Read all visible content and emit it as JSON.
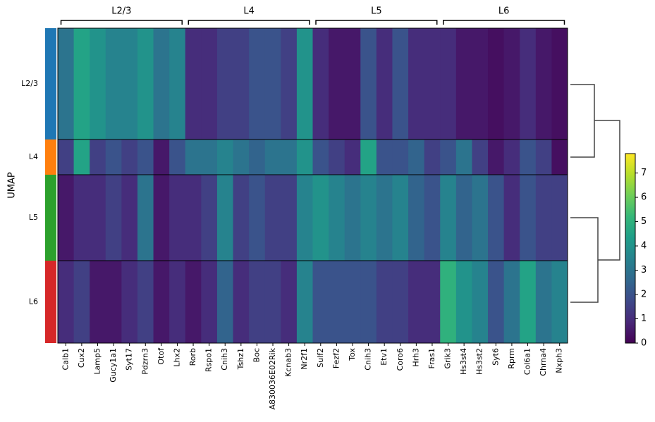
{
  "chart_data": {
    "type": "heatmap",
    "y_label": "UMAP",
    "colormap": "viridis",
    "gene_groups": [
      {
        "name": "L2/3",
        "genes": [
          "Calb1",
          "Cux2",
          "Lamp5",
          "Gucy1a1",
          "Syt17",
          "Pdzrn3",
          "Otof",
          "Lhx2"
        ]
      },
      {
        "name": "L4",
        "genes": [
          "Rorb",
          "Rspo1",
          "Cnih3",
          "Tshz1",
          "Boc",
          "A830036E02Rik",
          "Kcnab3",
          "Nr2f1"
        ]
      },
      {
        "name": "L5",
        "genes": [
          "Sulf2",
          "Fezf2",
          "Tox",
          "Cnih3",
          "Etv1",
          "Coro6",
          "Hrh3",
          "Fras1"
        ]
      },
      {
        "name": "L6",
        "genes": [
          "Grik3",
          "Hs3st4",
          "Hs3st2",
          "Syt6",
          "Rprm",
          "Col6a1",
          "Chrna4",
          "Nxph3"
        ]
      }
    ],
    "series": [
      {
        "name": "L2/3",
        "color": "#1f77b4",
        "values": [
          3,
          4.5,
          4,
          3.5,
          3.5,
          4,
          3,
          3.5,
          1,
          1,
          1.5,
          1.5,
          2,
          2,
          1.5,
          4,
          1,
          0.5,
          0.5,
          2,
          1,
          2,
          1,
          1,
          1,
          0.5,
          0.5,
          0.3,
          0.5,
          1,
          0.5,
          0.3
        ]
      },
      {
        "name": "L4",
        "color": "#ff7f0e",
        "values": [
          1.5,
          4.5,
          1.5,
          2,
          1.5,
          2,
          0.5,
          2,
          3,
          3,
          3.5,
          3,
          2.5,
          3,
          3,
          4,
          2,
          1.5,
          1,
          4.5,
          2,
          2,
          2.5,
          1.5,
          2,
          3,
          1.5,
          0.5,
          1,
          2,
          1.5,
          0.3
        ]
      },
      {
        "name": "L5",
        "color": "#2ca02c",
        "values": [
          0.5,
          1,
          1,
          1.5,
          1,
          3,
          0.5,
          1,
          1,
          1.5,
          3.5,
          1.5,
          2,
          1.5,
          1.5,
          3.5,
          4,
          3.5,
          3,
          3.5,
          3,
          3.5,
          2.5,
          2,
          3.5,
          2.5,
          3,
          2,
          1,
          2,
          1.5,
          1.5
        ]
      },
      {
        "name": "L6",
        "color": "#d62728",
        "values": [
          1,
          1.5,
          0.5,
          0.5,
          1,
          1.5,
          0.5,
          1,
          0.5,
          1,
          2.5,
          1,
          1.5,
          1.5,
          1,
          3.5,
          2,
          2,
          2,
          2,
          1.5,
          1.5,
          1,
          1,
          5,
          4,
          3.5,
          2,
          3,
          4.5,
          3,
          3.5
        ]
      }
    ],
    "clim": [
      0,
      7.8
    ],
    "cticks": [
      0,
      1,
      2,
      3,
      4,
      5,
      6,
      7
    ]
  }
}
